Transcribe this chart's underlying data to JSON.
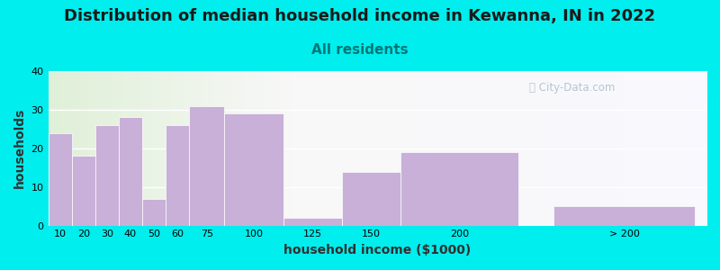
{
  "title": "Distribution of median household income in Kewanna, IN in 2022",
  "subtitle": "All residents",
  "xlabel": "household income ($1000)",
  "ylabel": "households",
  "background_outer": "#00EEEE",
  "bar_color": "#c8b0d8",
  "bar_edgecolor": "#ffffff",
  "ylim": [
    0,
    40
  ],
  "yticks": [
    0,
    10,
    20,
    30,
    40
  ],
  "bar_labels": [
    "10",
    "20",
    "30",
    "40",
    "50",
    "60",
    "75",
    "100",
    "125",
    "150",
    "200",
    "> 200"
  ],
  "bar_values": [
    24,
    18,
    26,
    28,
    7,
    26,
    31,
    29,
    2,
    14,
    19,
    5
  ],
  "title_fontsize": 13,
  "subtitle_fontsize": 11,
  "axis_label_fontsize": 10,
  "tick_fontsize": 8,
  "watermark_text": "ⓘ City-Data.com"
}
